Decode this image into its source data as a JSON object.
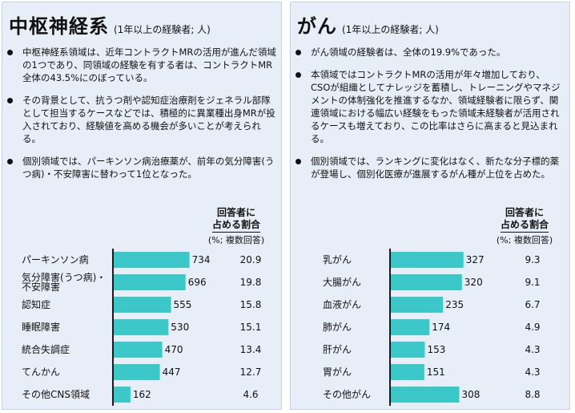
{
  "left": {
    "title": "中枢神経系",
    "subtitle": "(1年以上の経験者; 人)",
    "bullets": [
      "中枢神経系領域は、近年コントラクトMRの活用が進んだ領域の1つであり、同領域の経験を有する者は、コントラクトMR全体の43.5%にのぼっている。",
      "その背景として、抗うつ剤や認知症治療剤をジェネラル部隊として担当するケースなどでは、積極的に異業種出身MRが投入されており、経験値を高める機会が多いことが考えられる。",
      "個別領域では、パーキンソン病治療薬が、前年の気分障害(うつ病)・不安障害に替わって1位となった。"
    ],
    "ratio_header": {
      "line1": "回答者に",
      "line2": "占める割合",
      "note": "(%; 複数回答)"
    }
  },
  "right": {
    "title": "がん",
    "subtitle": "(1年以上の経験者; 人)",
    "bullets": [
      "がん領域の経験者は、全体の19.9%であった。",
      "本領域ではコントラクトMRの活用が年々増加しており、CSOが組織としてナレッジを蓄積し、トレーニングやマネジメントの体制強化を推進するなか、領域経験者に限らず、関連領域における幅広い経験をもった領域未経験者が活用されるケースも増えており、この比率はさらに高まると見込まれる。",
      "個別領域では、ランキングに変化はなく、新たな分子標的薬が登場し、個別化医療が進展するがん種が上位を占めた。"
    ],
    "ratio_header": {
      "line1": "回答者に",
      "line2": "占める割合",
      "note": "(%; 複数回答)"
    }
  },
  "colors": {
    "bar": "#3cc8c8",
    "panel_bg": "#e8eef7",
    "axis": "#1a1a1a"
  },
  "chart_data": [
    {
      "type": "bar",
      "orientation": "horizontal",
      "title": "中枢神経系",
      "categories": [
        "パーキンソン病",
        "気分障害(うつ病)・\n不安障害",
        "認知症",
        "睡眠障害",
        "統合失調症",
        "てんかん",
        "その他CNS領域"
      ],
      "values": [
        734,
        696,
        555,
        530,
        470,
        447,
        162
      ],
      "percent": [
        "20.9",
        "19.8",
        "15.8",
        "15.1",
        "13.4",
        "12.7",
        "4.6"
      ],
      "xlim": [
        0,
        900
      ]
    },
    {
      "type": "bar",
      "orientation": "horizontal",
      "title": "がん",
      "categories": [
        "乳がん",
        "大腸がん",
        "血液がん",
        "肺がん",
        "肝がん",
        "胃がん",
        "その他がん"
      ],
      "values": [
        327,
        320,
        235,
        174,
        153,
        151,
        308
      ],
      "percent": [
        "9.3",
        "9.1",
        "6.7",
        "4.9",
        "4.3",
        "4.3",
        "8.8"
      ],
      "xlim": [
        0,
        400
      ]
    }
  ]
}
